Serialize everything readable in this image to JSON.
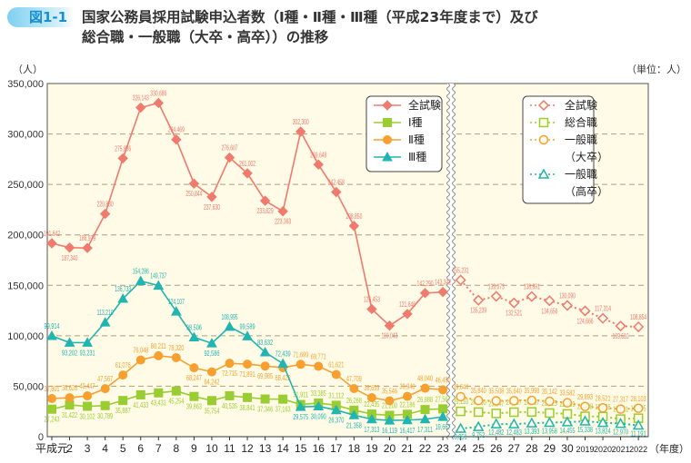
{
  "figure_label": "図1-1",
  "title_line1": "国家公務員採用試験申込者数（Ⅰ種・Ⅱ種・Ⅲ種（平成23年度まで）及び",
  "title_line2": "総合職・一般職（大卒・高卒））の推移",
  "chart_data": {
    "type": "line",
    "ylabel": "（人）",
    "unit_note": "（単位：人）",
    "xlabel": "（年度）",
    "ylim": [
      0,
      350000
    ],
    "yticks": [
      "0",
      "50,000",
      "100,000",
      "150,000",
      "200,000",
      "250,000",
      "300,000",
      "350,000"
    ],
    "ytick_values": [
      0,
      50000,
      100000,
      150000,
      200000,
      250000,
      300000,
      350000
    ],
    "grid": "horizontal dashed",
    "categories": [
      "平成元",
      "2",
      "3",
      "4",
      "5",
      "6",
      "7",
      "8",
      "9",
      "10",
      "11",
      "12",
      "13",
      "14",
      "15",
      "16",
      "17",
      "18",
      "19",
      "20",
      "21",
      "22",
      "23",
      "24",
      "25",
      "26",
      "27",
      "28",
      "29",
      "30",
      "2019",
      "2020",
      "2021",
      "2022"
    ],
    "axis_break_after": "23",
    "legend_left": {
      "placement": "top-center",
      "entries": [
        "全試験",
        "Ⅰ種",
        "Ⅱ種",
        "Ⅲ種"
      ]
    },
    "legend_right": {
      "placement": "top-right",
      "entries": [
        "全試験",
        "総合職",
        "一般職",
        "（大卒）",
        "一般職",
        "（高卒）"
      ]
    },
    "series_old": [
      {
        "name": "全試験",
        "color": "#f07a6e",
        "marker": "diamond",
        "values": [
          191642,
          187340,
          186979,
          220830,
          275836,
          326143,
          330686,
          294469,
          250844,
          237630,
          276607,
          261002,
          233829,
          223363,
          302300,
          269648,
          242458,
          208850,
          126453,
          110043,
          121646,
          142290,
          143342
        ]
      },
      {
        "name": "Ⅰ種",
        "color": "#9acd32",
        "marker": "square",
        "values": [
          27243,
          31422,
          30102,
          30789,
          35887,
          41433,
          43431,
          45254,
          39863,
          35754,
          40535,
          38841,
          37346,
          37163,
          31911,
          33385,
          31112,
          26268,
          22435,
          21200,
          22186,
          26888,
          27567
        ]
      },
      {
        "name": "Ⅱ種",
        "color": "#f7a030",
        "marker": "circle",
        "values": [
          37801,
          38626,
          40447,
          47567,
          61076,
          76048,
          80211,
          78320,
          68247,
          64242,
          72715,
          71891,
          69985,
          68422,
          71699,
          69771,
          61621,
          47709,
          38659,
          35546,
          39940,
          48040,
          46450
        ]
      },
      {
        "name": "Ⅲ種",
        "color": "#20b5b0",
        "marker": "triangle",
        "values": [
          99914,
          93202,
          93231,
          113210,
          136733,
          154286,
          149737,
          124107,
          98506,
          92586,
          108995,
          99589,
          83632,
          72439,
          29575,
          30090,
          26370,
          21358,
          17313,
          16119,
          16417,
          17311,
          19667
        ]
      }
    ],
    "series_new": [
      {
        "name": "全試験",
        "color": "#f07a6e",
        "marker": "diamond",
        "values": [
          155231,
          135239,
          139073,
          132521,
          138881,
          134656,
          130090,
          124666,
          117314,
          109610,
          108854
        ]
      },
      {
        "name": "総合職",
        "color": "#9acd32",
        "marker": "square",
        "values": [
          25110,
          24360,
          23047,
          24297,
          24507,
          23425,
          22559,
          20208,
          19926,
          17411,
          18295
        ]
      },
      {
        "name": "一般職（大卒）",
        "color": "#f7a030",
        "marker": "circle",
        "values": [
          39644,
          35840,
          35508,
          35640,
          35998,
          35142,
          33582,
          29893,
          28521,
          27317,
          28103
        ]
      },
      {
        "name": "一般職（高卒）",
        "color": "#20b5b0",
        "marker": "triangle",
        "values": [
          8051,
          9752,
          12482,
          12483,
          13393,
          13958,
          14455,
          15338,
          13824,
          12970,
          11191
        ]
      }
    ]
  }
}
